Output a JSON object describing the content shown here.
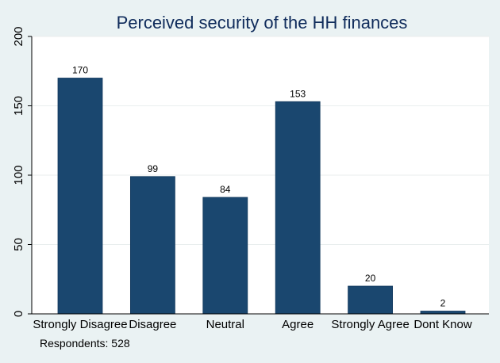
{
  "chart_data": {
    "type": "bar",
    "title": "Perceived security of the HH finances",
    "categories": [
      "Strongly Disagree",
      "Disagree",
      "Neutral",
      "Agree",
      "Strongly Agree",
      "Dont Know"
    ],
    "values": [
      170,
      99,
      84,
      153,
      20,
      2
    ],
    "data_labels": [
      "170",
      "99",
      "84",
      "153",
      "20",
      "2"
    ],
    "y_ticks": [
      0,
      50,
      100,
      150,
      200
    ],
    "ylim": [
      0,
      200
    ],
    "grid": true,
    "note": "Respondents: 528",
    "colors": {
      "bar": "#1a476f",
      "bar_edge": "#11385c",
      "title": "#0f2b5b",
      "plot_background": "#ffffff",
      "outer_background": "#eaf2f3",
      "grid": "#e9eeee"
    }
  }
}
